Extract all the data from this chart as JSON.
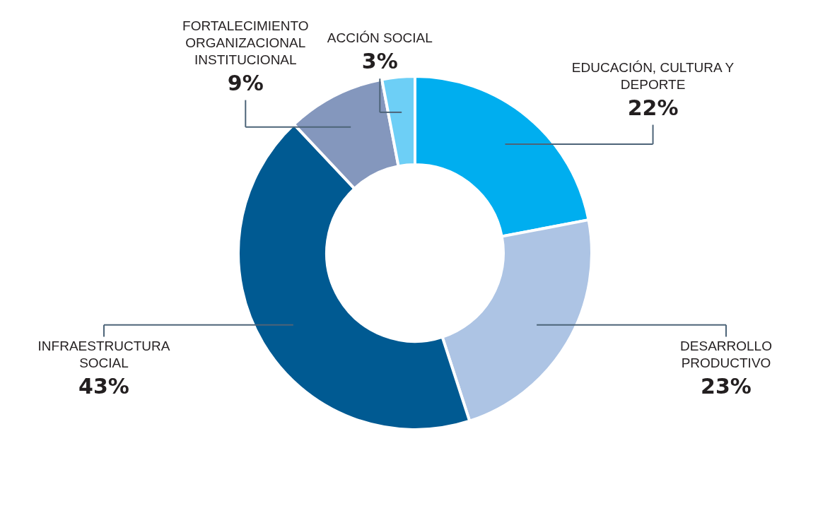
{
  "chart_data": {
    "type": "donut",
    "categories": [
      "EDUCACIÓN, CULTURA Y DEPORTE",
      "DESARROLLO PRODUCTIVO",
      "INFRAESTRUCTURA SOCIAL",
      "FORTALECIMIENTO ORGANIZACIONAL INSTITUCIONAL",
      "ACCIÓN SOCIAL"
    ],
    "values": [
      22,
      23,
      43,
      9,
      3
    ],
    "value_labels": [
      "22%",
      "23%",
      "43%",
      "9%",
      "3%"
    ],
    "colors": [
      "#00aeef",
      "#adc4e4",
      "#005a92",
      "#8497bd",
      "#6dcff6"
    ],
    "legend": false
  }
}
